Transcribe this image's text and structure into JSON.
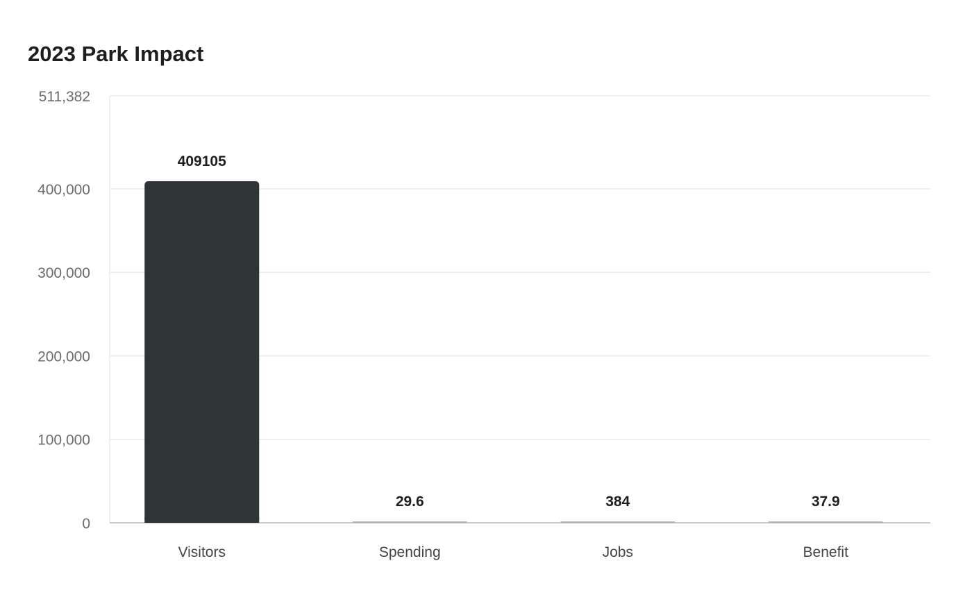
{
  "chart_data": {
    "type": "bar",
    "title": "2023 Park Impact",
    "xlabel": "",
    "ylabel": "",
    "categories": [
      "Visitors",
      "Spending",
      "Jobs",
      "Benefit"
    ],
    "values": [
      409105,
      29.6,
      384,
      37.9
    ],
    "value_labels": [
      "409105",
      "29.6",
      "384",
      "37.9"
    ],
    "ylim": [
      0,
      511382
    ],
    "yticks": [
      0,
      100000,
      200000,
      300000,
      400000,
      511382
    ],
    "ytick_labels": [
      "0",
      "100,000",
      "200,000",
      "300,000",
      "400,000",
      "511,382"
    ],
    "grid": true,
    "legend": "none",
    "colors": {
      "highlight": "#2f3537",
      "bar": "#a9b4b8",
      "grid": "#ebebeb",
      "axis": "#cccccc"
    }
  }
}
